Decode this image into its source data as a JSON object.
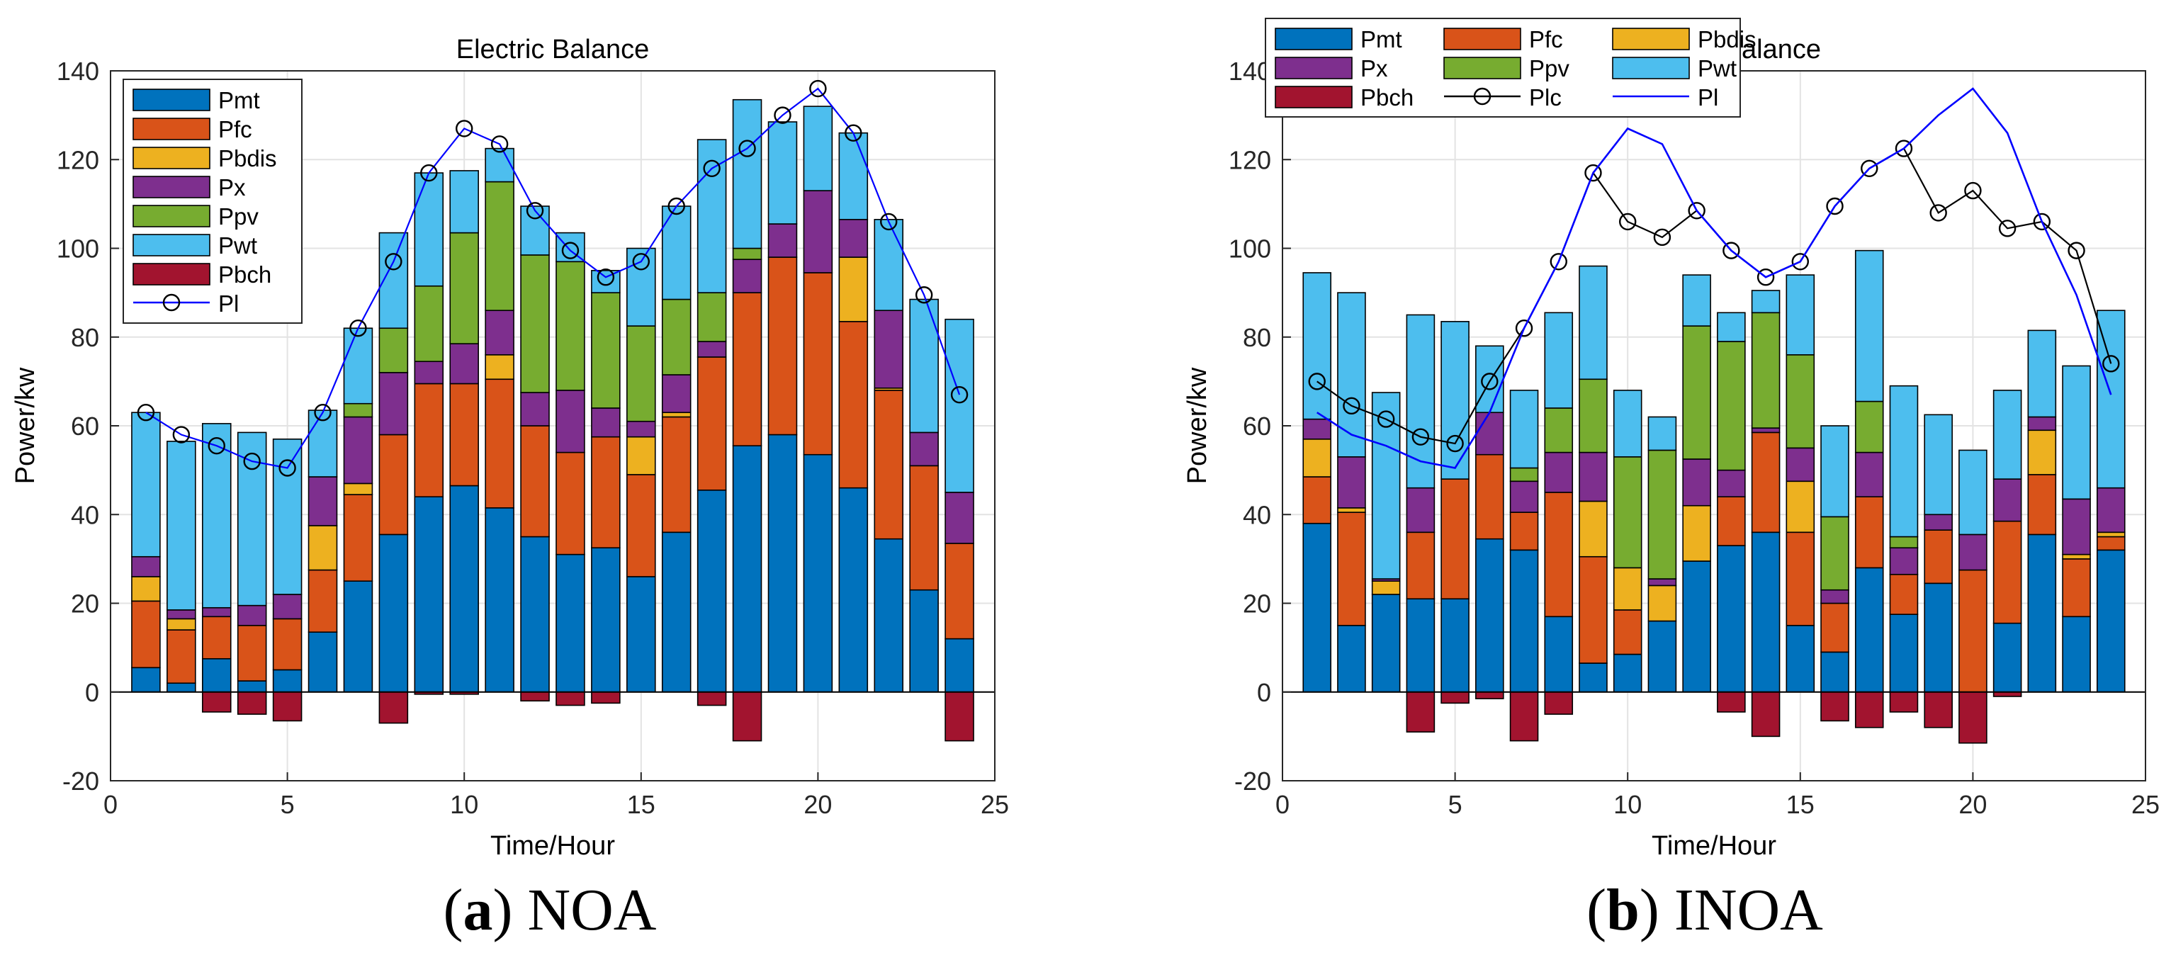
{
  "captions": [
    {
      "letter": "a",
      "text": "NOA"
    },
    {
      "letter": "b",
      "text": "INOA"
    }
  ],
  "colors": {
    "Pmt": "#0072bd",
    "Pfc": "#d95319",
    "Pbdis": "#edb120",
    "Px": "#7e2f8e",
    "Ppv": "#77ac30",
    "Pwt": "#4dbeee",
    "Pbch": "#a2142f",
    "Plc": "#000000",
    "Pl": "#0000ff"
  },
  "chart_data": [
    {
      "type": "bar",
      "stacked": true,
      "title": "Electric Balance",
      "xlabel": "Time/Hour",
      "ylabel": "Power/kw",
      "xlim": [
        0,
        25
      ],
      "ylim": [
        -20,
        140
      ],
      "xticks": [
        "0",
        "5",
        "10",
        "15",
        "20",
        "25"
      ],
      "yticks": [
        "-20",
        "0",
        "20",
        "40",
        "60",
        "80",
        "100",
        "120",
        "140"
      ],
      "grid": true,
      "legend_position": "top-left",
      "legend_layout": "single-column",
      "legend": [
        "Pmt",
        "Pfc",
        "Pbdis",
        "Px",
        "Ppv",
        "Pwt",
        "Pbch",
        "Pl"
      ],
      "x": [
        1,
        2,
        3,
        4,
        5,
        6,
        7,
        8,
        9,
        10,
        11,
        12,
        13,
        14,
        15,
        16,
        17,
        18,
        19,
        20,
        21,
        22,
        23,
        24
      ],
      "series": [
        {
          "name": "Pmt",
          "values": [
            5.5,
            2,
            7.5,
            2.5,
            5,
            13.5,
            25,
            35.5,
            44,
            46.5,
            41.5,
            35,
            31,
            32.5,
            26,
            36,
            45.5,
            55.5,
            58,
            53.5,
            46,
            34.5,
            23,
            12
          ]
        },
        {
          "name": "Pfc",
          "values": [
            15,
            12,
            9.5,
            12.5,
            11.5,
            14,
            19.5,
            22.5,
            25.5,
            23,
            29,
            25,
            23,
            25,
            23,
            26,
            30,
            34.5,
            40,
            41,
            37.5,
            33.5,
            28,
            21.5
          ]
        },
        {
          "name": "Pbdis",
          "values": [
            5.5,
            2.5,
            0,
            0,
            0,
            10,
            2.5,
            0,
            0,
            0,
            5.5,
            0,
            0,
            0,
            8.5,
            1,
            0,
            0,
            0,
            0,
            14.5,
            0.5,
            0,
            0
          ]
        },
        {
          "name": "Px",
          "values": [
            4.5,
            2,
            2,
            4.5,
            5.5,
            11,
            15,
            14,
            5,
            9,
            10,
            7.5,
            14,
            6.5,
            3.5,
            8.5,
            3.5,
            7.5,
            7.5,
            18.5,
            8.5,
            17.5,
            7.5,
            11.5
          ]
        },
        {
          "name": "Ppv",
          "values": [
            0,
            0,
            0,
            0,
            0,
            0,
            3,
            10,
            17,
            25,
            29,
            31,
            29,
            26,
            21.5,
            17,
            11,
            2.5,
            0,
            0,
            0,
            0,
            0,
            0
          ]
        },
        {
          "name": "Pwt",
          "values": [
            32.5,
            38,
            41.5,
            39,
            35,
            15,
            17,
            21.5,
            25.5,
            14,
            7.5,
            11,
            6.5,
            5,
            17.5,
            21,
            34.5,
            33.5,
            23,
            19,
            19.5,
            20.5,
            30,
            39
          ]
        },
        {
          "name": "Pbch",
          "values": [
            0,
            0,
            -4.5,
            -5,
            -6.5,
            0,
            0,
            -7,
            -0.5,
            -0.5,
            0,
            -2,
            -3,
            -2.5,
            0,
            0,
            -3,
            -11,
            0,
            0,
            0,
            0,
            0,
            -11
          ]
        }
      ],
      "lines": [
        {
          "name": "Pl",
          "marker": "circle",
          "values": [
            63,
            58,
            55.5,
            52,
            50.5,
            63,
            82,
            97,
            117,
            127,
            123.5,
            108.5,
            99.5,
            93.5,
            97,
            109.5,
            118,
            122.5,
            130,
            136,
            126,
            106,
            89.5,
            67
          ]
        }
      ]
    },
    {
      "type": "bar",
      "stacked": true,
      "title": "Electrical Balance",
      "xlabel": "Time/Hour",
      "ylabel": "Power/kw",
      "xlim": [
        0,
        25
      ],
      "ylim": [
        -20,
        140
      ],
      "xticks": [
        "0",
        "5",
        "10",
        "15",
        "20",
        "25"
      ],
      "yticks": [
        "-20",
        "0",
        "20",
        "40",
        "60",
        "80",
        "100",
        "120",
        "140"
      ],
      "grid": true,
      "legend_position": "top-left",
      "legend_layout": "three-columns",
      "legend": [
        "Pmt",
        "Pfc",
        "Pbdis",
        "Px",
        "Ppv",
        "Pwt",
        "Pbch",
        "Plc",
        "Pl"
      ],
      "x": [
        1,
        2,
        3,
        4,
        5,
        6,
        7,
        8,
        9,
        10,
        11,
        12,
        13,
        14,
        15,
        16,
        17,
        18,
        19,
        20,
        21,
        22,
        23,
        24
      ],
      "series": [
        {
          "name": "Pmt",
          "values": [
            38,
            15,
            22,
            21,
            21,
            34.5,
            32,
            17,
            6.5,
            8.5,
            16,
            29.5,
            33,
            36,
            15,
            9,
            28,
            17.5,
            24.5,
            0,
            15.5,
            35.5,
            17,
            32
          ]
        },
        {
          "name": "Pfc",
          "values": [
            10.5,
            25.5,
            0,
            15,
            27,
            19,
            8.5,
            28,
            24,
            10,
            0,
            0,
            11,
            22.5,
            21,
            11,
            16,
            9,
            12,
            27.5,
            23,
            13.5,
            13,
            3
          ]
        },
        {
          "name": "Pbdis",
          "values": [
            8.5,
            1,
            3,
            0,
            0,
            0,
            0,
            0,
            12.5,
            9.5,
            8,
            12.5,
            0,
            0,
            11.5,
            0,
            0,
            0,
            0,
            0,
            0,
            10,
            1,
            1
          ]
        },
        {
          "name": "Px",
          "values": [
            4.5,
            11.5,
            0.5,
            10,
            0,
            9.5,
            7,
            9,
            11,
            0,
            1.5,
            10.5,
            6,
            1,
            7.5,
            3,
            10,
            6,
            3.5,
            8,
            9.5,
            3,
            12.5,
            10
          ]
        },
        {
          "name": "Ppv",
          "values": [
            0,
            0,
            0,
            0,
            0,
            0,
            3,
            10,
            16.5,
            25,
            29,
            30,
            29,
            26,
            21,
            16.5,
            11.5,
            2.5,
            0,
            0,
            0,
            0,
            0,
            0
          ]
        },
        {
          "name": "Pwt",
          "values": [
            33,
            37,
            42,
            39,
            35.5,
            15,
            17.5,
            21.5,
            25.5,
            15,
            7.5,
            11.5,
            6.5,
            5,
            18,
            20.5,
            34,
            34,
            22.5,
            19,
            20,
            19.5,
            30,
            40
          ]
        },
        {
          "name": "Pbch",
          "values": [
            0,
            0,
            0,
            -9,
            -2.5,
            -1.5,
            -11,
            -5,
            0,
            0,
            0,
            0,
            -4.5,
            -10,
            0,
            -6.5,
            -8,
            -4.5,
            -8,
            -11.5,
            -1,
            0,
            0,
            0
          ]
        }
      ],
      "lines": [
        {
          "name": "Plc",
          "marker": "circle",
          "values": [
            70,
            64.5,
            61.5,
            57.5,
            56,
            70,
            82,
            97,
            117,
            106,
            102.5,
            108.5,
            99.5,
            93.5,
            97,
            109.5,
            118,
            122.5,
            108,
            113,
            104.5,
            106,
            99.5,
            74
          ]
        },
        {
          "name": "Pl",
          "marker": "none",
          "values": [
            63,
            58,
            55.5,
            52,
            50.5,
            63,
            82,
            97,
            117,
            127,
            123.5,
            108.5,
            99.5,
            93.5,
            97,
            109.5,
            118,
            122.5,
            130,
            136,
            126,
            106,
            89.5,
            67
          ]
        }
      ]
    }
  ]
}
